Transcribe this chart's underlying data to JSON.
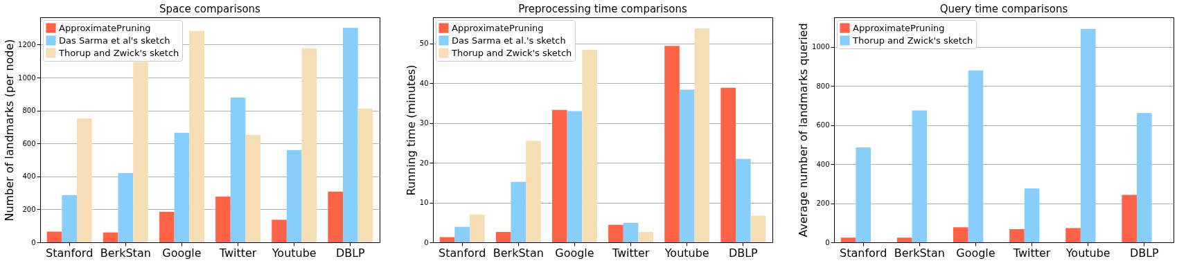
{
  "chart_data": [
    {
      "type": "bar",
      "title": "Space comparisons",
      "ylabel": "Number of landmarks (per node)",
      "categories": [
        "Stanford",
        "BerkStan",
        "Google",
        "Twitter",
        "Youtube",
        "DBLP"
      ],
      "series": [
        {
          "name": "ApproximatePruning",
          "color": "#ff6347",
          "values": [
            65,
            60,
            185,
            277,
            137,
            308
          ]
        },
        {
          "name": "Das Sarma et al's sketch",
          "color": "#87cefa",
          "values": [
            287,
            420,
            665,
            878,
            560,
            1302
          ]
        },
        {
          "name": "Thorup and Zwick's sketch",
          "color": "#f5deb3",
          "values": [
            752,
            1095,
            1283,
            653,
            1178,
            812
          ]
        }
      ],
      "ylim": [
        0,
        1366
      ],
      "yticks": [
        0,
        200,
        400,
        600,
        800,
        1000,
        1200
      ],
      "grid": "y",
      "legend": "top left"
    },
    {
      "type": "bar",
      "title": "Preprocessing time comparisons",
      "ylabel": "Running time (minutes)",
      "categories": [
        "Stanford",
        "BerkStan",
        "Google",
        "Twitter",
        "Youtube",
        "DBLP"
      ],
      "series": [
        {
          "name": "ApproximatePruning",
          "color": "#ff6347",
          "values": [
            1.3,
            2.6,
            33.3,
            4.4,
            49.4,
            38.9
          ]
        },
        {
          "name": "Das Sarma et al.'s sketch",
          "color": "#87cefa",
          "values": [
            3.9,
            15.2,
            33.0,
            4.9,
            38.4,
            21.0
          ]
        },
        {
          "name": "Thorup and Zwick's sketch",
          "color": "#f5deb3",
          "values": [
            7.0,
            25.5,
            48.4,
            2.6,
            53.8,
            6.7
          ]
        }
      ],
      "ylim": [
        0,
        56.6
      ],
      "yticks": [
        0,
        10,
        20,
        30,
        40,
        50
      ],
      "grid": "y",
      "legend": "top left"
    },
    {
      "type": "bar",
      "title": "Query time comparisons",
      "ylabel": "Average number of landmarks queried",
      "categories": [
        "Stanford",
        "BerkStan",
        "Google",
        "Twitter",
        "Youtube",
        "DBLP"
      ],
      "series": [
        {
          "name": "ApproximatePruning",
          "color": "#ff6347",
          "values": [
            24,
            24,
            77,
            67,
            73,
            243
          ]
        },
        {
          "name": "Thorup and Zwick's sketch",
          "color": "#87cefa",
          "values": [
            486,
            675,
            880,
            276,
            1093,
            662
          ]
        }
      ],
      "ylim": [
        0,
        1152
      ],
      "yticks": [
        0,
        200,
        400,
        600,
        800,
        1000
      ],
      "grid": "y",
      "legend": "top left"
    }
  ]
}
